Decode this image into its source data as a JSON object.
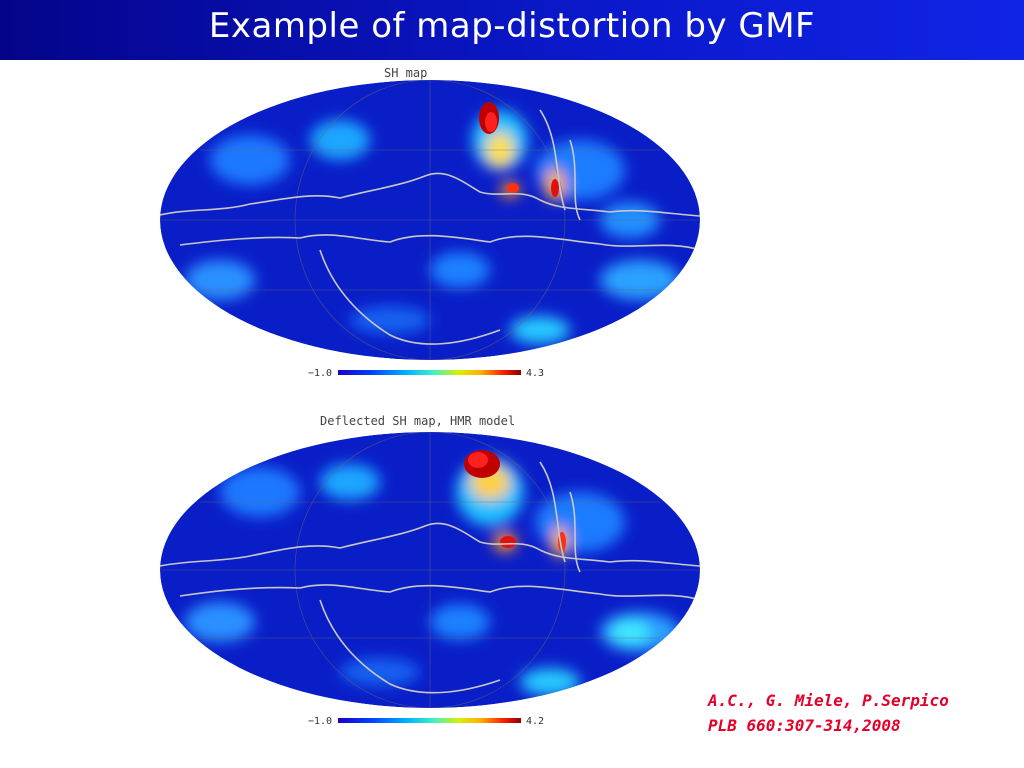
{
  "slide": {
    "title": "Example of map-distortion by GMF"
  },
  "maps": [
    {
      "title": "SH   map",
      "cbar_min": "−1.0",
      "cbar_max": "4.3"
    },
    {
      "title": "Deflected SH   map, HMR model",
      "cbar_min": "−1.0",
      "cbar_max": "4.2"
    }
  ],
  "credit": {
    "line1": "A.C., G. Miele, P.Serpico",
    "line2": "PLB 660:307-314,2008"
  },
  "colors": {
    "header_bg": "#0a18c8",
    "map_base": "#0a1ec8",
    "credit": "#e3002a"
  }
}
